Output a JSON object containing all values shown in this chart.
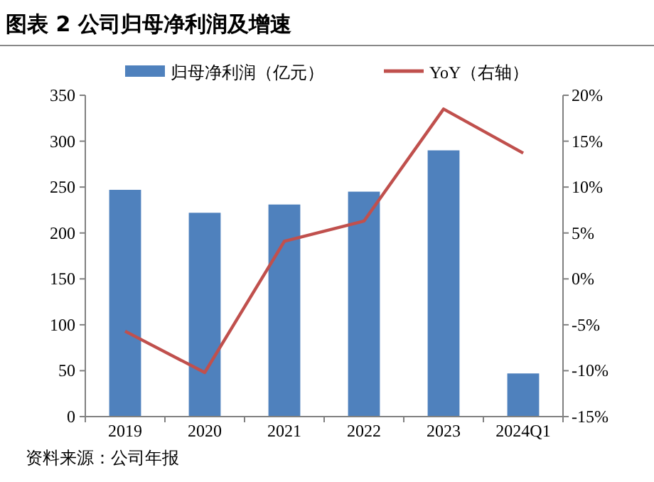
{
  "chart_data": {
    "type": "bar",
    "title": "图表 2 公司归母净利润及增速",
    "categories": [
      "2019",
      "2020",
      "2021",
      "2022",
      "2023",
      "2024Q1"
    ],
    "series": [
      {
        "name": "归母净利润（亿元）",
        "color": "#4f81bd",
        "values": [
          247,
          222,
          231,
          245,
          290,
          47
        ]
      },
      {
        "name": "YoY（右轴）",
        "type": "line",
        "axis": "y2",
        "color": "#c0504d",
        "values": [
          -5.7,
          -10.2,
          4.1,
          6.3,
          18.5,
          13.7
        ]
      }
    ],
    "ylim": [
      0,
      350
    ],
    "yticks": [
      0,
      50,
      100,
      150,
      200,
      250,
      300,
      350
    ],
    "y2lim": [
      -15,
      20
    ],
    "y2ticks": [
      {
        "value": -15,
        "label": "-15%"
      },
      {
        "value": -10,
        "label": "-10%"
      },
      {
        "value": -5,
        "label": "-5%"
      },
      {
        "value": 0,
        "label": "0%"
      },
      {
        "value": 5,
        "label": "5%"
      },
      {
        "value": 10,
        "label": "10%"
      },
      {
        "value": 15,
        "label": "15%"
      },
      {
        "value": 20,
        "label": "20%"
      }
    ],
    "grid": false,
    "legend": "top",
    "marker": "none",
    "line_style": "solid",
    "annotations": [
      "资料来源：公司年报"
    ]
  }
}
